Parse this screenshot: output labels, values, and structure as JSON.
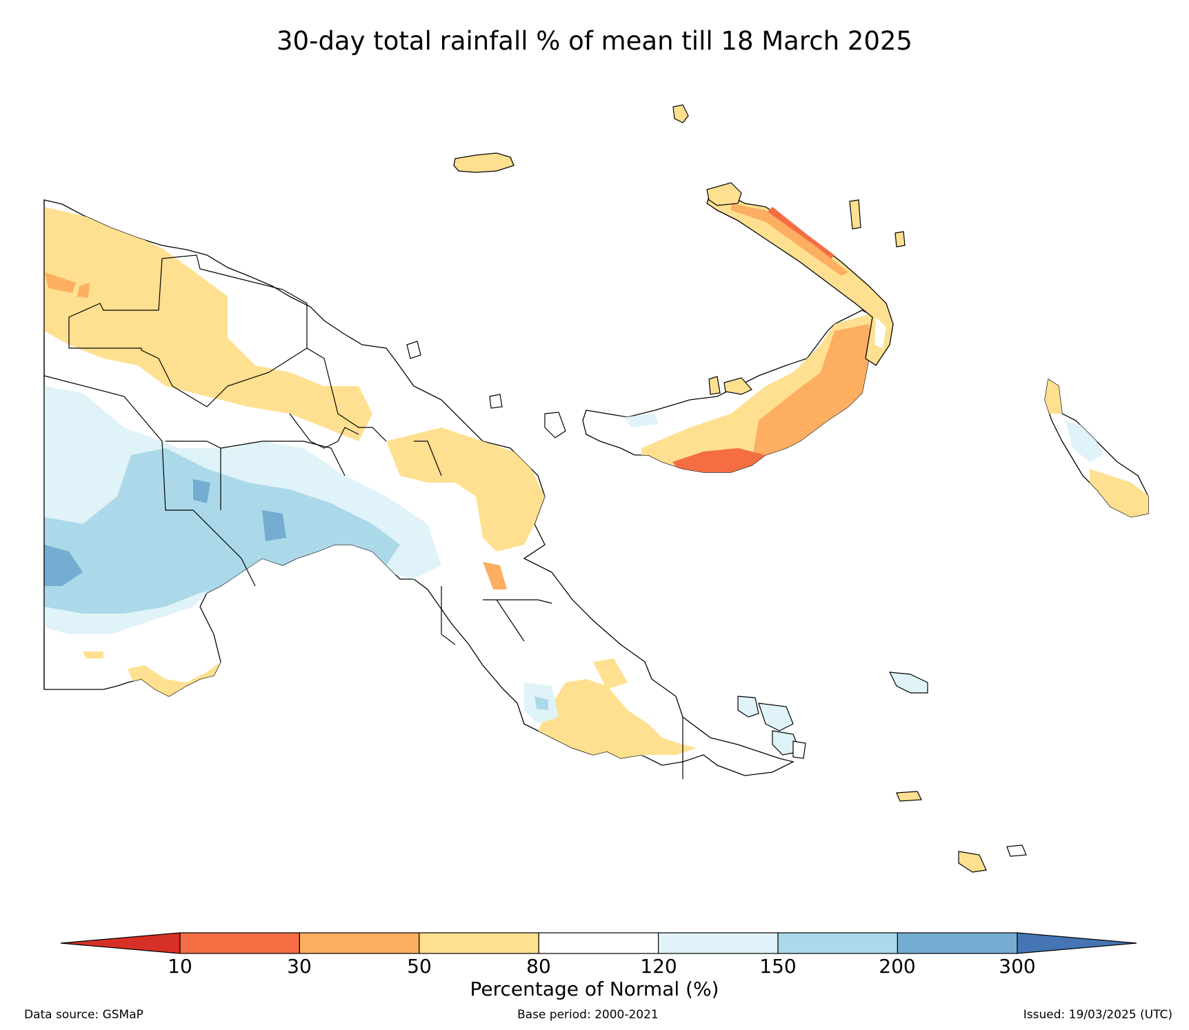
{
  "title": "30-day total rainfall % of mean till 18 March 2025",
  "colorbar": {
    "label": "Percentage of Normal (%)",
    "ticks": [
      "10",
      "30",
      "50",
      "80",
      "120",
      "150",
      "200",
      "300"
    ],
    "colors": {
      "below_10": "#d73027",
      "10_30": "#f46d43",
      "30_50": "#fdae61",
      "50_80": "#fee090",
      "80_120": "#ffffff",
      "120_150": "#e0f3f8",
      "150_200": "#abd9e9",
      "200_300": "#74add1",
      "above_300": "#4575b4"
    }
  },
  "footer": {
    "source": "Data source: GSMaP",
    "base_period": "Base period: 2000-2021",
    "issued": "Issued: 19/03/2025 (UTC)"
  }
}
